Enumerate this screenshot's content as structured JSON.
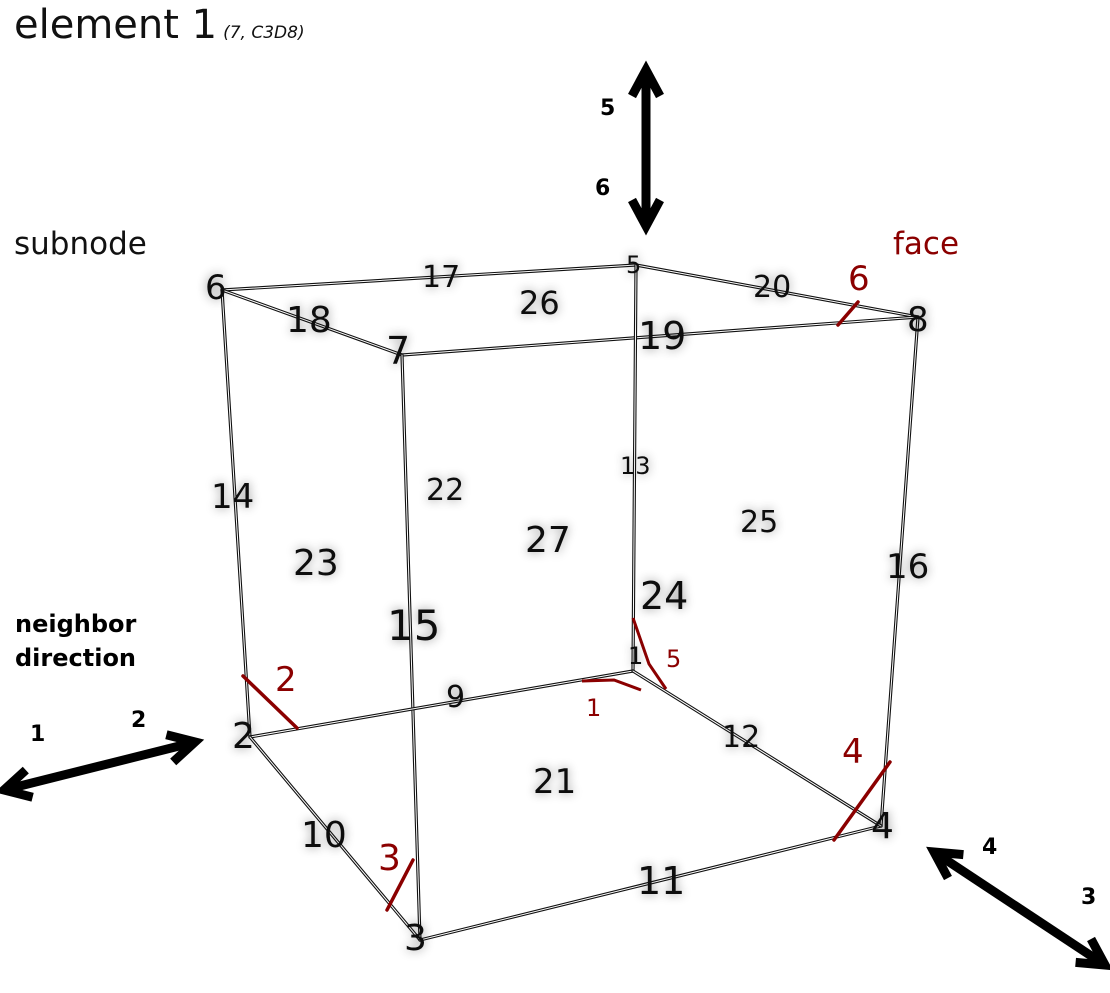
{
  "title": {
    "main": "element 1",
    "detail": "(7, C3D8)"
  },
  "headers": {
    "subnode": "subnode",
    "face": "face"
  },
  "neighbor": {
    "line1": "neighbor",
    "line2": "direction"
  },
  "colors": {
    "edge": "#111111",
    "face": "#8b0000",
    "arrow": "#000000"
  },
  "corner_nodes": [
    "1",
    "2",
    "3",
    "4",
    "5",
    "6",
    "7",
    "8"
  ],
  "edge_nodes": [
    "9",
    "10",
    "11",
    "12",
    "13",
    "14",
    "15",
    "16",
    "17",
    "18",
    "19",
    "20"
  ],
  "face_nodes": [
    "21",
    "22",
    "23",
    "24",
    "25",
    "26",
    "27"
  ],
  "face_numbers": [
    "1",
    "2",
    "3",
    "4",
    "5",
    "6"
  ],
  "directions": [
    "1",
    "2",
    "3",
    "4",
    "5",
    "6"
  ]
}
